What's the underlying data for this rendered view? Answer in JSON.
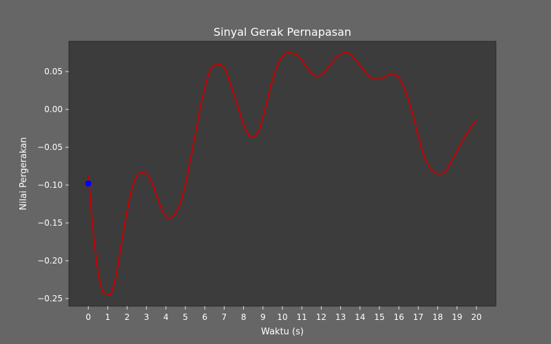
{
  "chart_data": {
    "type": "line",
    "title": "Sinyal Gerak Pernapasan",
    "xlabel": "Waktu (s)",
    "ylabel": "Nilai Pergerakan",
    "xlim": [
      -1,
      21
    ],
    "ylim": [
      -0.26,
      0.09
    ],
    "xticks": [
      "0",
      "1",
      "2",
      "3",
      "4",
      "5",
      "6",
      "7",
      "8",
      "9",
      "10",
      "11",
      "12",
      "13",
      "14",
      "15",
      "16",
      "17",
      "18",
      "19",
      "20"
    ],
    "yticks": [
      "0.05",
      "0.00",
      "−0.05",
      "−0.10",
      "−0.15",
      "−0.20",
      "−0.25"
    ],
    "series": [
      {
        "color": "#cc0000",
        "x": [
          0.0,
          0.25,
          0.5,
          0.75,
          1.0,
          1.1,
          1.25,
          1.5,
          1.75,
          2.0,
          2.25,
          2.5,
          2.75,
          3.0,
          3.25,
          3.5,
          3.75,
          4.0,
          4.25,
          4.5,
          4.75,
          5.0,
          5.25,
          5.5,
          5.75,
          6.0,
          6.25,
          6.5,
          6.7,
          7.0,
          7.25,
          7.5,
          7.75,
          8.0,
          8.25,
          8.4,
          8.75,
          9.0,
          9.25,
          9.5,
          9.75,
          10.0,
          10.25,
          10.4,
          10.75,
          11.0,
          11.25,
          11.5,
          11.75,
          12.0,
          12.25,
          12.5,
          12.75,
          13.0,
          13.25,
          13.5,
          13.75,
          14.0,
          14.25,
          14.5,
          14.75,
          15.0,
          15.25,
          15.5,
          15.75,
          16.0,
          16.25,
          16.5,
          16.75,
          17.0,
          17.25,
          17.5,
          17.75,
          18.0,
          18.3,
          18.5,
          18.75,
          19.0,
          19.25,
          19.5,
          19.75,
          20.0
        ],
        "values": [
          -0.088,
          -0.16,
          -0.215,
          -0.24,
          -0.244,
          -0.245,
          -0.238,
          -0.21,
          -0.17,
          -0.135,
          -0.105,
          -0.088,
          -0.083,
          -0.085,
          -0.095,
          -0.112,
          -0.13,
          -0.142,
          -0.143,
          -0.137,
          -0.123,
          -0.1,
          -0.068,
          -0.035,
          0.0,
          0.028,
          0.05,
          0.058,
          0.06,
          0.055,
          0.04,
          0.02,
          0.0,
          -0.02,
          -0.033,
          -0.037,
          -0.03,
          -0.01,
          0.015,
          0.04,
          0.058,
          0.07,
          0.075,
          0.075,
          0.072,
          0.065,
          0.056,
          0.048,
          0.044,
          0.046,
          0.052,
          0.06,
          0.068,
          0.073,
          0.075,
          0.073,
          0.066,
          0.058,
          0.05,
          0.043,
          0.04,
          0.04,
          0.043,
          0.046,
          0.047,
          0.042,
          0.03,
          0.012,
          -0.01,
          -0.035,
          -0.058,
          -0.073,
          -0.082,
          -0.085,
          -0.084,
          -0.078,
          -0.066,
          -0.055,
          -0.043,
          -0.032,
          -0.022,
          -0.015
        ]
      }
    ],
    "marker": {
      "x": 0.0,
      "y": -0.098,
      "color": "#0000ff"
    },
    "grid": false
  }
}
